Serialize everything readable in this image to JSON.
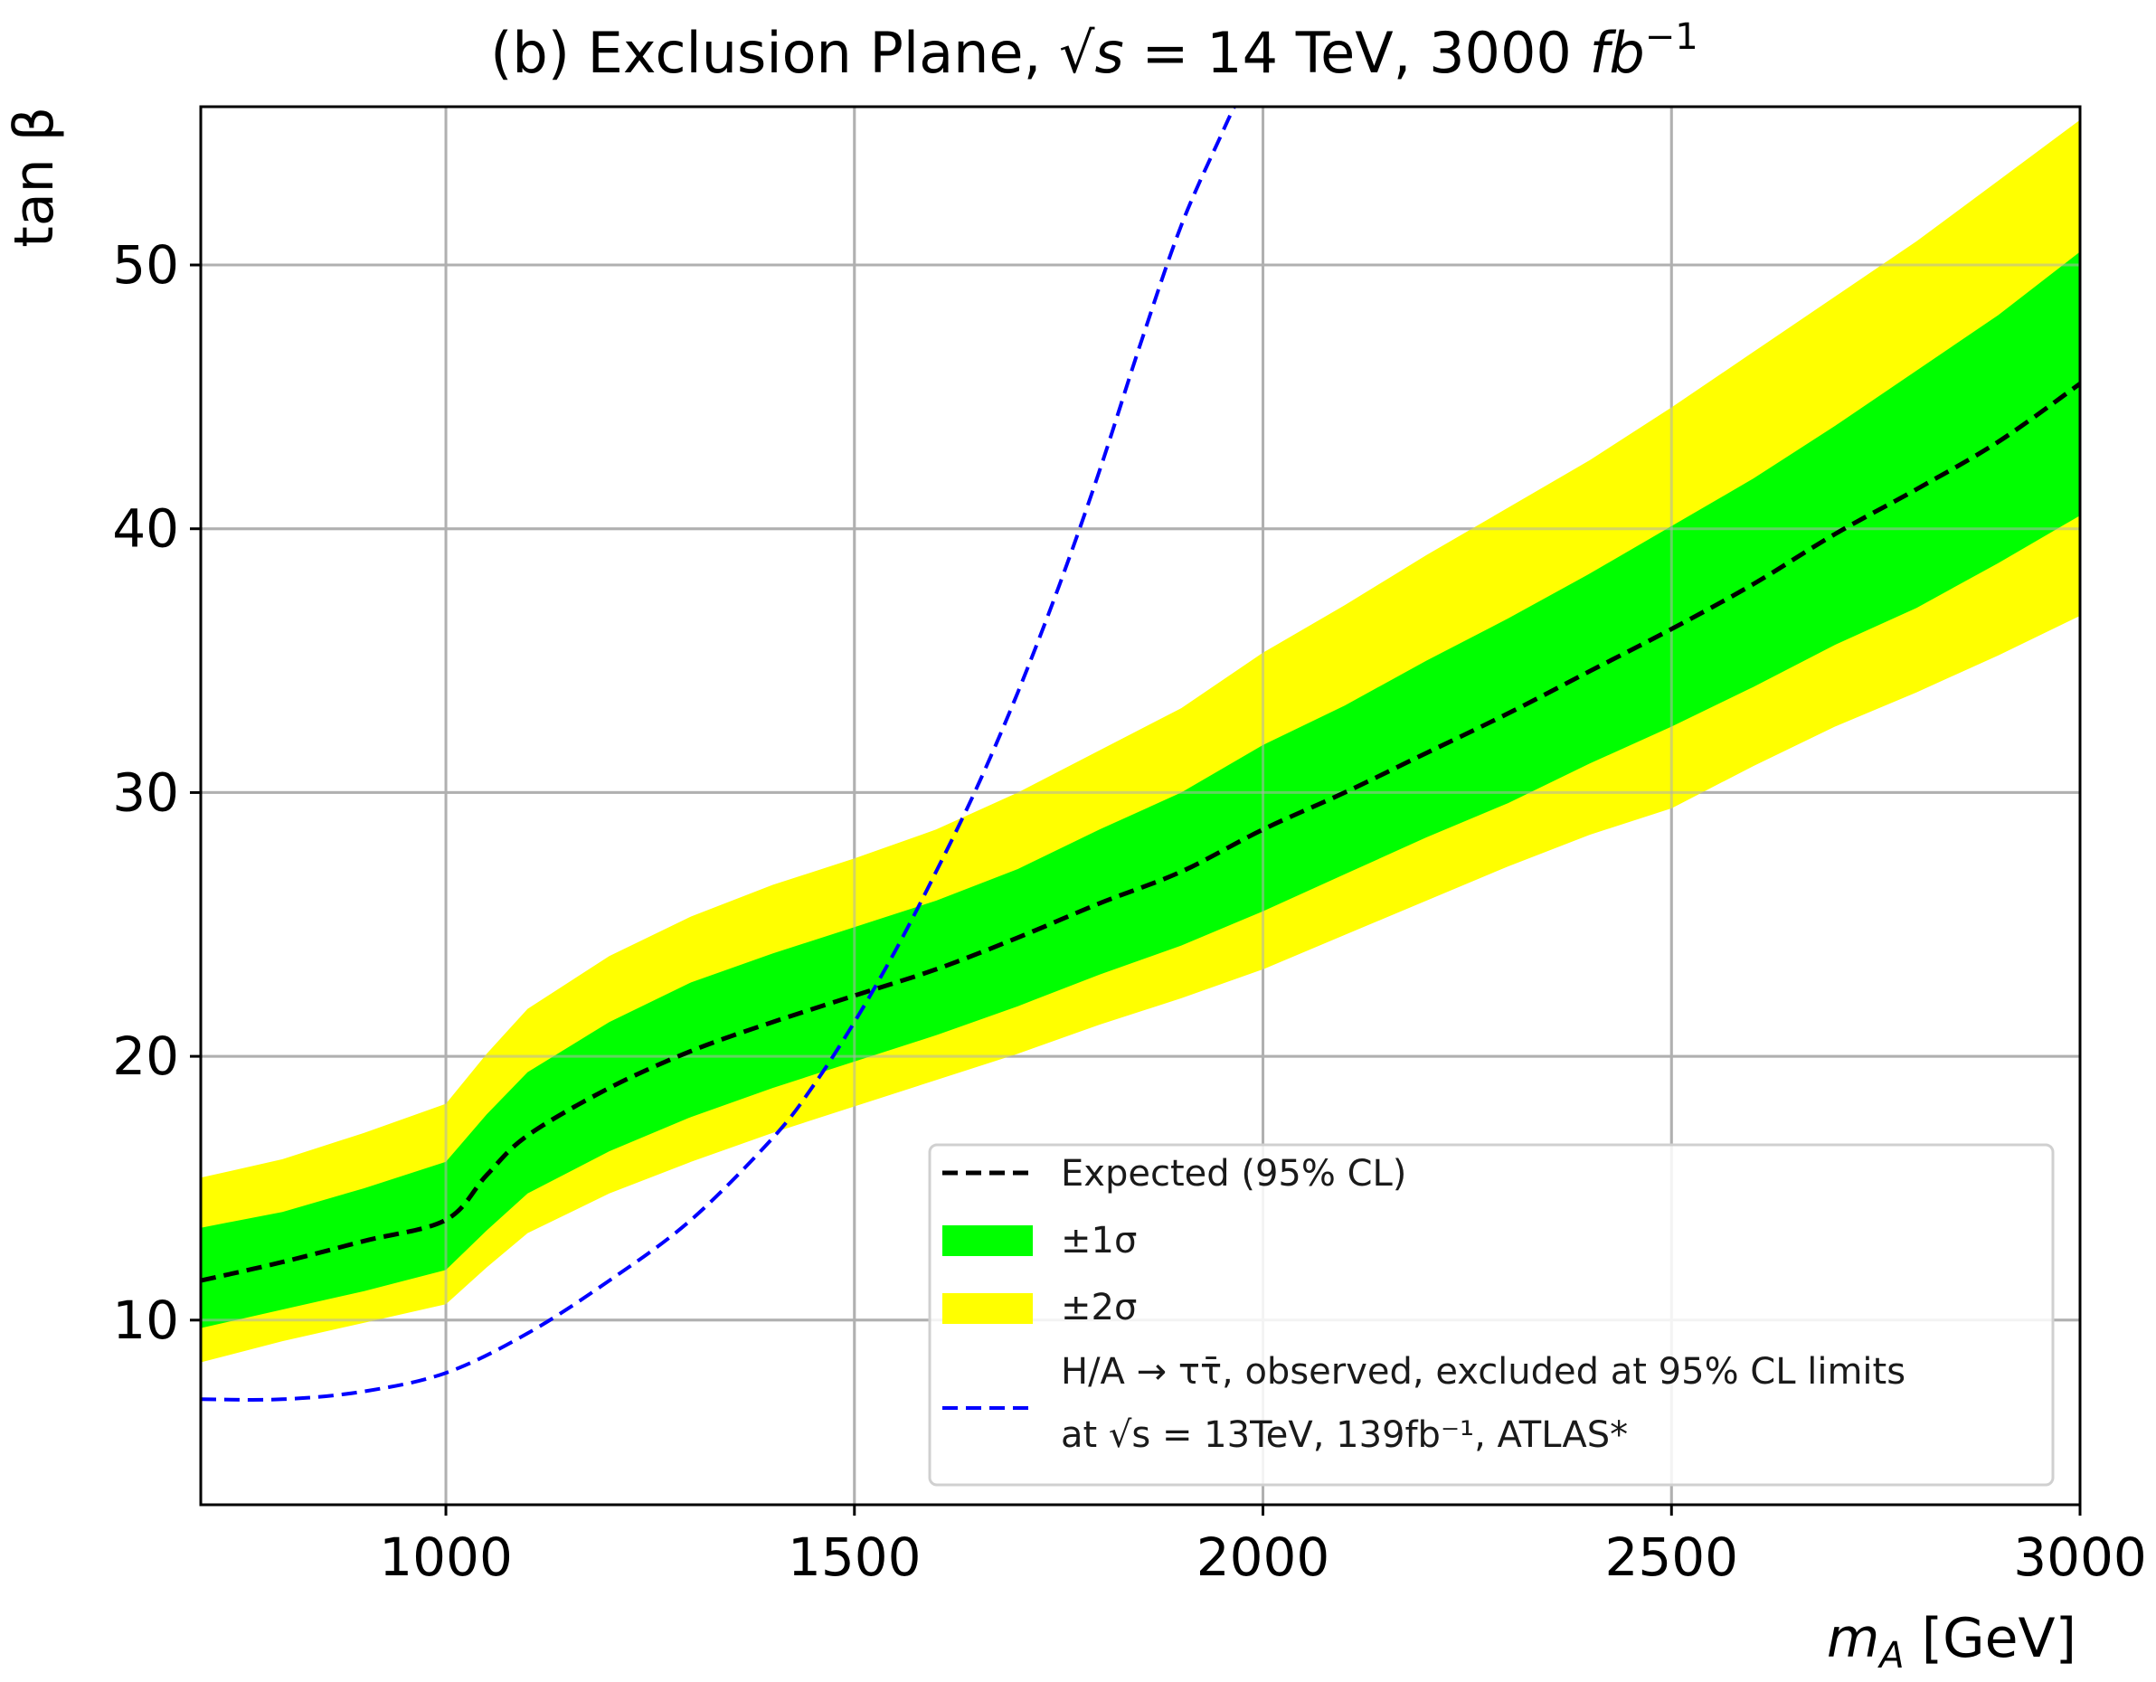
{
  "chart_data": {
    "type": "line",
    "title": "(b) Exclusion Plane, √s = 14 TeV, 3000 fb⁻¹",
    "title_parts": {
      "prefix": "(b) Exclusion Plane, ",
      "sqrt": "√",
      "s": "s",
      "eq": " = 14 TeV, 3000 ",
      "unit": "fb",
      "exp": "−1"
    },
    "xlabel": "m_A [GeV]",
    "xlabel_parts": {
      "m": "m",
      "sub": "A",
      "rest": " [GeV]"
    },
    "ylabel": "tan β",
    "xlim": [
      700,
      3000
    ],
    "ylim": [
      3,
      56
    ],
    "xticks": [
      1000,
      1500,
      2000,
      2500,
      3000
    ],
    "yticks": [
      10,
      20,
      30,
      40,
      50
    ],
    "grid": true,
    "legend_position": "lower-right",
    "x": [
      700,
      800,
      900,
      1000,
      1050,
      1100,
      1200,
      1300,
      1400,
      1500,
      1600,
      1700,
      1800,
      1900,
      2000,
      2100,
      2200,
      2300,
      2400,
      2500,
      2600,
      2700,
      2800,
      2900,
      3000
    ],
    "series": [
      {
        "name": "Expected (95% CL)",
        "style": "dashed",
        "color": "#000000",
        "values": [
          11.5,
          12.2,
          13.0,
          13.8,
          15.5,
          17.0,
          18.8,
          20.2,
          21.3,
          22.3,
          23.3,
          24.5,
          25.8,
          27.0,
          28.6,
          30.0,
          31.5,
          33.0,
          34.6,
          36.2,
          37.9,
          39.8,
          41.5,
          43.3,
          45.5
        ]
      },
      {
        "name": "±1σ",
        "type": "band",
        "color": "#00ff00",
        "lower": [
          9.7,
          10.4,
          11.1,
          11.9,
          13.4,
          14.8,
          16.4,
          17.7,
          18.8,
          19.8,
          20.8,
          21.9,
          23.1,
          24.2,
          25.5,
          26.9,
          28.3,
          29.6,
          31.1,
          32.5,
          34.0,
          35.6,
          37.0,
          38.7,
          40.5
        ],
        "upper": [
          13.5,
          14.1,
          15.0,
          16.0,
          17.8,
          19.4,
          21.3,
          22.8,
          23.9,
          24.9,
          25.9,
          27.1,
          28.6,
          30.0,
          31.8,
          33.3,
          35.0,
          36.6,
          38.3,
          40.1,
          41.9,
          43.9,
          46.0,
          48.1,
          50.5
        ]
      },
      {
        "name": "±2σ",
        "type": "band",
        "color": "#ffff00",
        "lower": [
          8.4,
          9.2,
          9.9,
          10.6,
          12.0,
          13.3,
          14.8,
          16.0,
          17.1,
          18.1,
          19.1,
          20.1,
          21.2,
          22.2,
          23.3,
          24.6,
          25.9,
          27.2,
          28.4,
          29.4,
          31.0,
          32.5,
          33.8,
          35.2,
          36.7
        ],
        "upper": [
          15.4,
          16.1,
          17.1,
          18.2,
          20.1,
          21.8,
          23.8,
          25.3,
          26.5,
          27.5,
          28.6,
          30.0,
          31.6,
          33.2,
          35.3,
          37.1,
          39.0,
          40.8,
          42.6,
          44.6,
          46.7,
          48.8,
          50.9,
          53.2,
          55.5
        ]
      },
      {
        "name": "H/A → ττ̄, observed, excluded at 95% CL limits at √s = 13TeV, 139fb⁻¹, ATLAS*",
        "style": "dashed",
        "color": "#0000ff",
        "x": [
          700,
          800,
          900,
          1000,
          1100,
          1200,
          1300,
          1400,
          1450,
          1500,
          1550,
          1600,
          1650,
          1700,
          1750,
          1800,
          1850,
          1900,
          1950,
          1965
        ],
        "values": [
          7.0,
          7.0,
          7.3,
          8.0,
          9.5,
          11.5,
          13.8,
          16.9,
          18.9,
          21.3,
          24.0,
          27.0,
          30.2,
          33.8,
          37.8,
          42.2,
          47.0,
          51.5,
          55.0,
          56.0
        ]
      }
    ],
    "legend": {
      "expected": "Expected (95% CL)",
      "one_sigma": "±1σ",
      "two_sigma": "±2σ",
      "atlas_line1": "H/A → ττ̄, observed, excluded at 95% CL limits",
      "atlas_line2": "at √s = 13TeV, 139fb⁻¹, ATLAS*"
    },
    "colors": {
      "one_sigma": "#00ff00",
      "two_sigma": "#ffff00",
      "expected": "#000000",
      "atlas": "#0000ff",
      "grid": "#b0b0b0"
    }
  }
}
